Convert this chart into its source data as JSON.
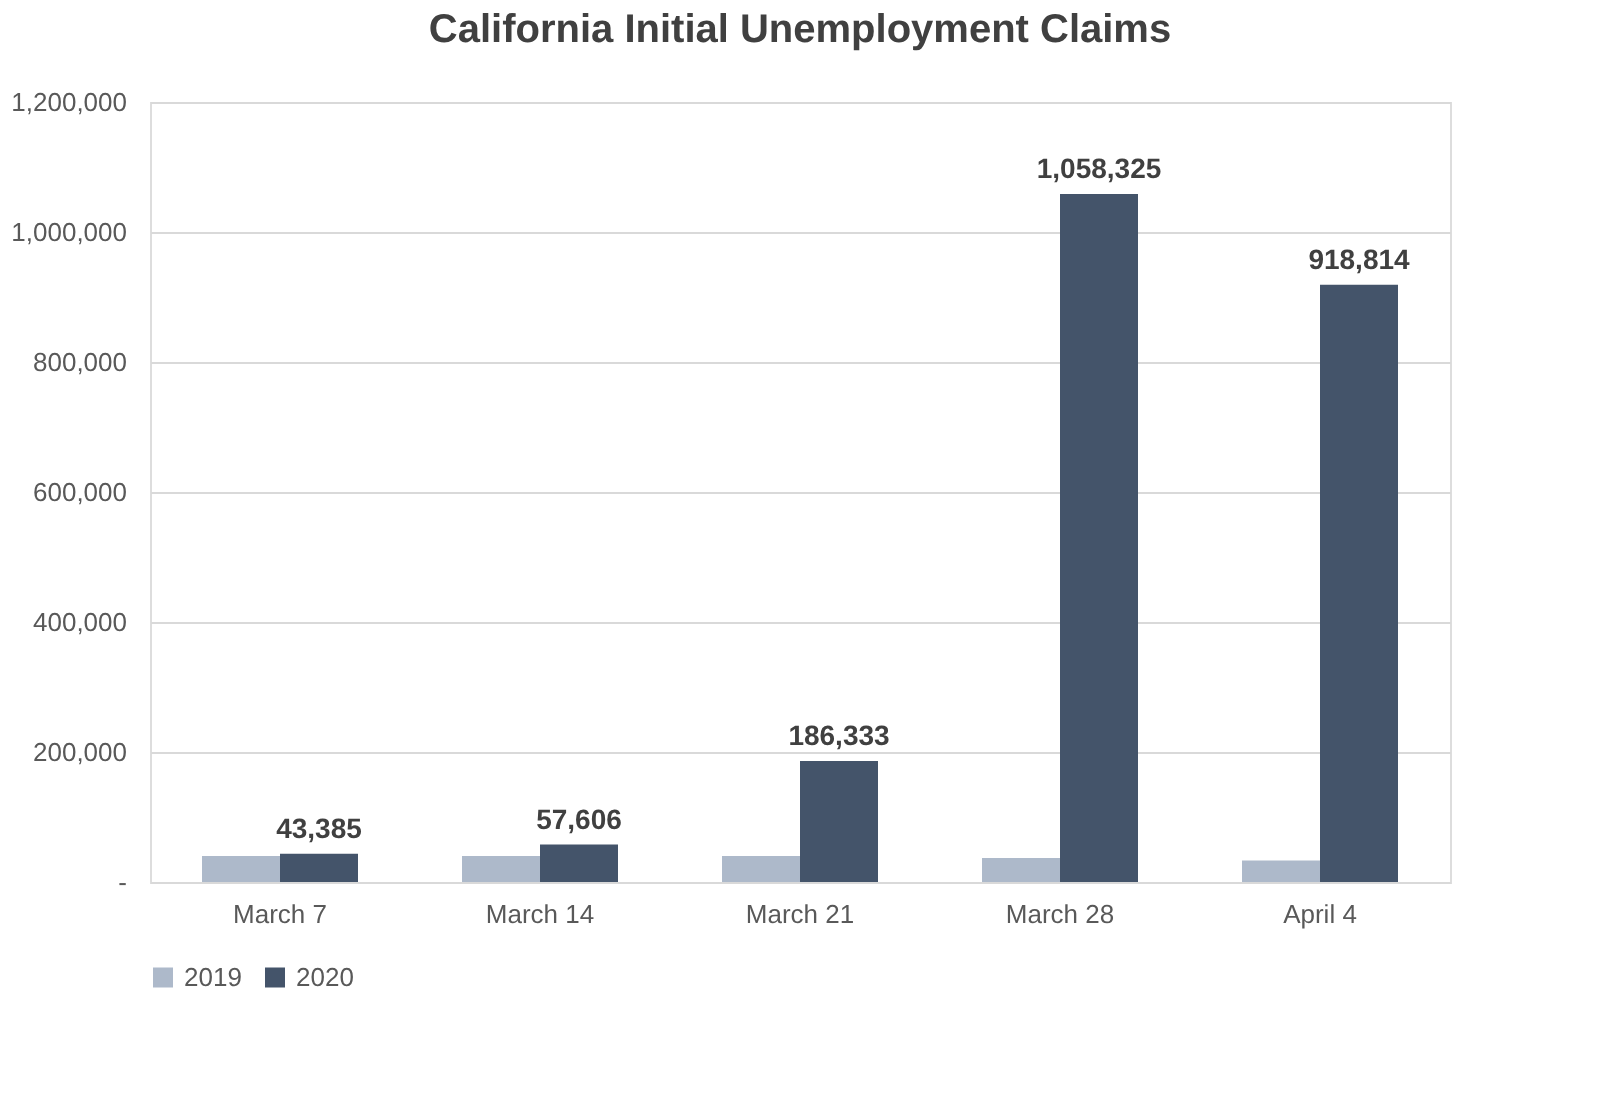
{
  "chart_data": {
    "type": "bar",
    "title": "California Initial Unemployment Claims",
    "categories": [
      "March 7",
      "March 14",
      "March 21",
      "March 28",
      "April 4"
    ],
    "series": [
      {
        "name": "2019",
        "color": "#adb9ca",
        "values": [
          40000,
          40000,
          40000,
          37000,
          33000
        ]
      },
      {
        "name": "2020",
        "color": "#44546a",
        "values": [
          43385,
          57606,
          186333,
          1058325,
          918814
        ],
        "value_labels": [
          "43,385",
          "57,606",
          "186,333",
          "1,058,325",
          "918,814"
        ]
      }
    ],
    "ylim": [
      0,
      1200000
    ],
    "yticks": [
      {
        "value": 0,
        "label": "-"
      },
      {
        "value": 200000,
        "label": "200,000"
      },
      {
        "value": 400000,
        "label": "400,000"
      },
      {
        "value": 600000,
        "label": "600,000"
      },
      {
        "value": 800000,
        "label": "800,000"
      },
      {
        "value": 1000000,
        "label": "1,000,000"
      },
      {
        "value": 1200000,
        "label": "1,200,000"
      }
    ],
    "grid": "y",
    "legend": "bottom"
  }
}
